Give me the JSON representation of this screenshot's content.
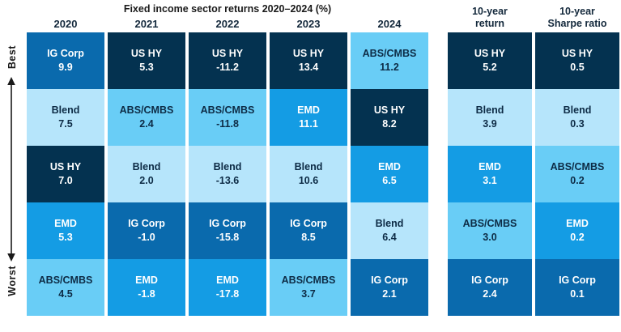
{
  "title": "Fixed income sector returns 2020–2024 (%)",
  "axis": {
    "best": "Best",
    "worst": "Worst"
  },
  "sector_colors": {
    "IG Corp": {
      "bg": "#0a6aad",
      "text": "#ffffff"
    },
    "US HY": {
      "bg": "#043250",
      "text": "#ffffff"
    },
    "Blend": {
      "bg": "#b6e5fb",
      "text": "#0d2b45"
    },
    "EMD": {
      "bg": "#149ce4",
      "text": "#ffffff"
    },
    "ABS/CMBS": {
      "bg": "#69cdf6",
      "text": "#0d2b45"
    }
  },
  "chart_data": {
    "type": "table",
    "title": "Fixed income sector returns 2020–2024 (%)",
    "value_unit": "percent (main columns), ratio (Sharpe column)",
    "row_order": {
      "top": "Best",
      "bottom": "Worst"
    },
    "columns": [
      {
        "header": "2020",
        "cells": [
          {
            "sector": "IG Corp",
            "value": 9.9
          },
          {
            "sector": "Blend",
            "value": 7.5
          },
          {
            "sector": "US HY",
            "value": 7.0
          },
          {
            "sector": "EMD",
            "value": 5.3
          },
          {
            "sector": "ABS/CMBS",
            "value": 4.5
          }
        ]
      },
      {
        "header": "2021",
        "cells": [
          {
            "sector": "US HY",
            "value": 5.3
          },
          {
            "sector": "ABS/CMBS",
            "value": 2.4
          },
          {
            "sector": "Blend",
            "value": 2.0
          },
          {
            "sector": "IG Corp",
            "value": -1.0
          },
          {
            "sector": "EMD",
            "value": -1.8
          }
        ]
      },
      {
        "header": "2022",
        "cells": [
          {
            "sector": "US HY",
            "value": -11.2
          },
          {
            "sector": "ABS/CMBS",
            "value": -11.8
          },
          {
            "sector": "Blend",
            "value": -13.6
          },
          {
            "sector": "IG Corp",
            "value": -15.8
          },
          {
            "sector": "EMD",
            "value": -17.8
          }
        ]
      },
      {
        "header": "2023",
        "cells": [
          {
            "sector": "US HY",
            "value": 13.4
          },
          {
            "sector": "EMD",
            "value": 11.1
          },
          {
            "sector": "Blend",
            "value": 10.6
          },
          {
            "sector": "IG Corp",
            "value": 8.5
          },
          {
            "sector": "ABS/CMBS",
            "value": 3.7
          }
        ]
      },
      {
        "header": "2024",
        "cells": [
          {
            "sector": "ABS/CMBS",
            "value": 11.2
          },
          {
            "sector": "US HY",
            "value": 8.2
          },
          {
            "sector": "EMD",
            "value": 6.5
          },
          {
            "sector": "Blend",
            "value": 6.4
          },
          {
            "sector": "IG Corp",
            "value": 2.1
          }
        ]
      }
    ],
    "summary_columns": [
      {
        "header": "10-year return",
        "header_lines": [
          "10-year",
          "return"
        ],
        "cells": [
          {
            "sector": "US HY",
            "value": 5.2
          },
          {
            "sector": "Blend",
            "value": 3.9
          },
          {
            "sector": "EMD",
            "value": 3.1
          },
          {
            "sector": "ABS/CMBS",
            "value": 3.0
          },
          {
            "sector": "IG Corp",
            "value": 2.4
          }
        ]
      },
      {
        "header": "10-year Sharpe ratio",
        "header_lines": [
          "10-year",
          "Sharpe ratio"
        ],
        "cells": [
          {
            "sector": "US HY",
            "value": 0.5
          },
          {
            "sector": "Blend",
            "value": 0.3
          },
          {
            "sector": "ABS/CMBS",
            "value": 0.2
          },
          {
            "sector": "EMD",
            "value": 0.2
          },
          {
            "sector": "IG Corp",
            "value": 0.1
          }
        ]
      }
    ]
  }
}
